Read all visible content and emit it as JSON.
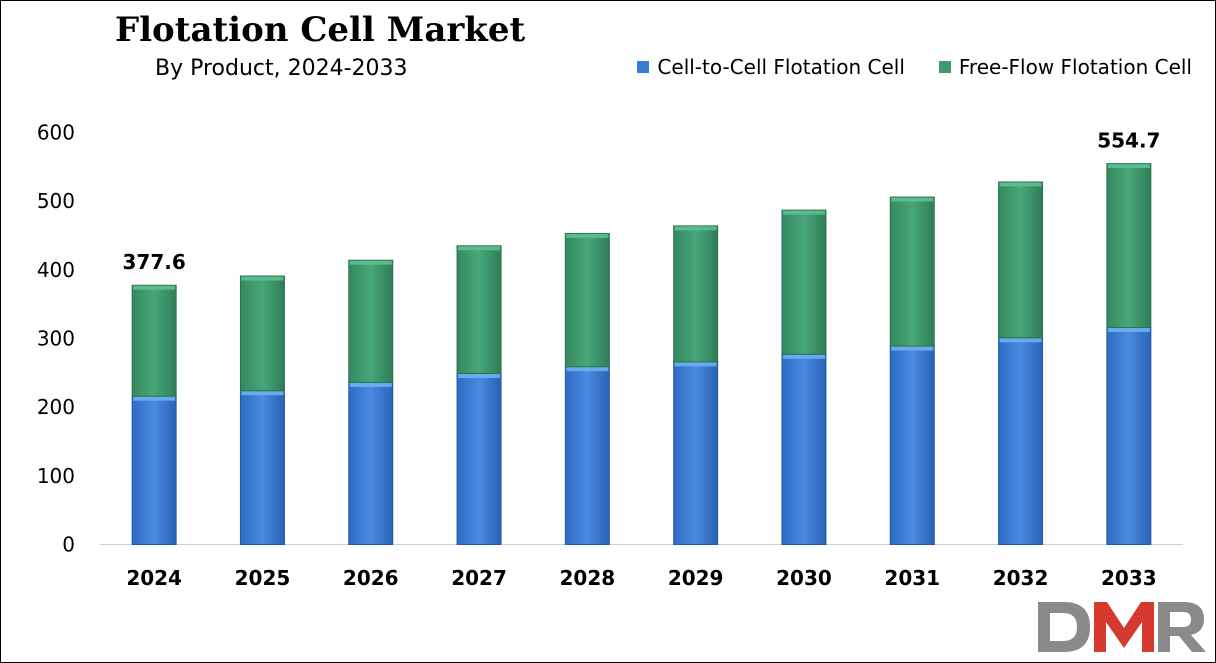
{
  "chart_data": {
    "type": "bar",
    "stacked": true,
    "title": "Flotation Cell Market",
    "subtitle": "By Product, 2024-2033",
    "categories": [
      "2024",
      "2025",
      "2026",
      "2027",
      "2028",
      "2029",
      "2030",
      "2031",
      "2032",
      "2033"
    ],
    "series": [
      {
        "name": "Cell-to-Cell Flotation Cell",
        "color": "#3a7bd5",
        "values": [
          216,
          224,
          236,
          249,
          259,
          266,
          277,
          289,
          301,
          316
        ]
      },
      {
        "name": "Free-Flow Flotation Cell",
        "color": "#3f9b6e",
        "values": [
          161.6,
          167,
          178,
          186,
          194,
          198,
          210,
          217,
          227,
          238.7
        ]
      }
    ],
    "total_labels": [
      {
        "category": "2024",
        "text": "377.6"
      },
      {
        "category": "2033",
        "text": "554.7"
      }
    ],
    "yticks": [
      "0",
      "100",
      "200",
      "300",
      "400",
      "500",
      "600"
    ],
    "ylim": [
      0,
      600
    ],
    "xlabel": "",
    "ylabel": "",
    "grid": false,
    "legend_position": "top-right"
  },
  "logo": {
    "text": "DMR",
    "colors": {
      "d": "#8a8a8a",
      "m": "#d63a2f",
      "r": "#8a8a8a"
    }
  }
}
